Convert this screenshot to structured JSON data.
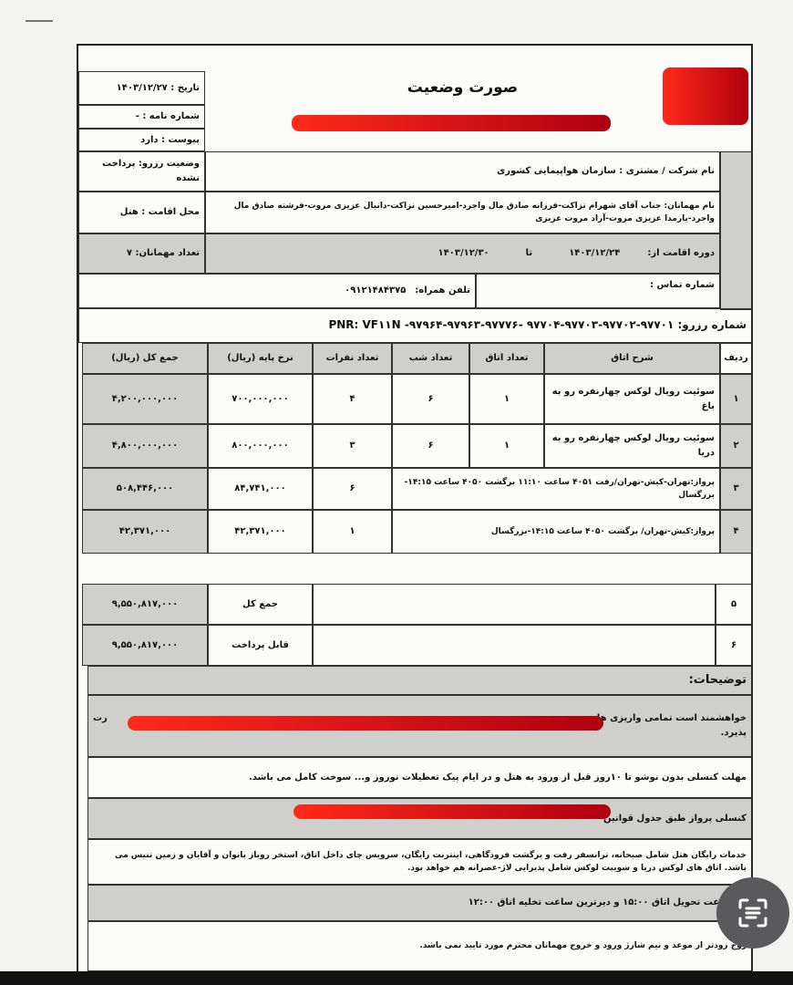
{
  "header": {
    "title": "صورت وضعیت",
    "date": "تاریخ : ۱۴۰۳/۱۲/۲۷",
    "letter_no": "شماره نامه : -",
    "attachment": "پیوست : دارد",
    "reservation_status": "وضعیت رزرو: پرداخت نشده",
    "residence": "محل اقامت : هتل",
    "guest_count": "تعداد مهمانان: ۷"
  },
  "info": {
    "company": "نام شرکت / مشتری : سازمان هواپیمایی کشوری",
    "guests": "نام مهمانان: جناب آقای شهرام نزاکت-فرزانه صادق مال واجرد-امیرحسین نزاکت-دانیال عزیزی مروت-فرشته صادق مال واجرد-یارمدا عزیزی مروت-آراد مروت عزیزی",
    "stay_from_label": "دوره اقامت از:",
    "stay_from": "۱۴۰۳/۱۲/۲۴",
    "stay_to_label": "تا",
    "stay_to": "۱۴۰۳/۱۲/۳۰",
    "contact_label": "شماره تماس :",
    "mobile_label": "تلفن همراه:",
    "mobile": "۰۹۱۲۱۴۸۴۳۷۵",
    "reservation_no": "شماره رزرو: ۹۷۷۰۱-۹۷۷۰۲-۹۷۷۰۳-۹۷۷۰۴ -۹۷۷۷۶-۹۷۹۶۳-۹۷۹۶۴- PNR: VF۱۱N"
  },
  "table": {
    "headers": [
      "ردیف",
      "شرح اتاق",
      "تعداد اتاق",
      "تعداد شب",
      "تعداد نفرات",
      "نرخ پایه (ریال)",
      "جمع کل (ریال)"
    ],
    "rows": [
      {
        "no": "۱",
        "desc": "سوئیت رویال لوکس چهارنفره رو به باغ",
        "rooms": "۱",
        "nights": "۶",
        "persons": "۴",
        "rate": "۷۰۰,۰۰۰,۰۰۰",
        "total": "۴,۲۰۰,۰۰۰,۰۰۰"
      },
      {
        "no": "۲",
        "desc": "سوئیت رویال لوکس چهارنفره رو به دریا",
        "rooms": "۱",
        "nights": "۶",
        "persons": "۳",
        "rate": "۸۰۰,۰۰۰,۰۰۰",
        "total": "۴,۸۰۰,۰۰۰,۰۰۰"
      },
      {
        "no": "۳",
        "desc": "پرواز:تهران-کیش-تهران/رفت ۴۰۵۱ ساعت ۱۱:۱۰ برگشت ۴۰۵۰ ساعت ۱۴:۱۵-بزرگسال",
        "persons": "۶",
        "rate": "۸۴,۷۴۱,۰۰۰",
        "total": "۵۰۸,۴۴۶,۰۰۰"
      },
      {
        "no": "۴",
        "desc": "پرواز:کیش-تهران/ برگشت ۴۰۵۰ ساعت ۱۴:۱۵-بزرگسال",
        "persons": "۱",
        "rate": "۴۲,۳۷۱,۰۰۰",
        "total": "۴۲,۳۷۱,۰۰۰"
      }
    ],
    "row5_no": "۵",
    "row6_no": "۶",
    "sum_label": "جمع کل",
    "sum": "۹,۵۵۰,۸۱۷,۰۰۰",
    "payable_label": "قابل پرداخت",
    "payable": "۹,۵۵۰,۸۱۷,۰۰۰"
  },
  "notes": {
    "title": "توضیحات:",
    "payment": "خواهشمند است تمامی واریزی ها به",
    "payment_end": "رت",
    "payment_line2": "پذیرد.",
    "cancellation": "مهلت کنسلی بدون نوشو تا ۱۰روز قبل از ورود به هتل و در ایام پیک تعطیلات نوروز و... سوخت کامل می باشد.",
    "flight_cancel": "کنسلی پرواز طبق جدول قوانین",
    "services": "خدمات رایگان هتل شامل صبحانه، ترانسفر رفت و برگشت فرودگاهی، اینترنت رایگان، سرویس چای داخل اتاق، استخر روباز بانوان و آقایان و زمین تنیس می باشد. اتاق های لوکس دریا و سوییت لوکس شامل پذیرایی لاژ-عصرانه هم خواهد بود.",
    "checkin": "ین ساعت تحویل اتاق ۱۵:۰۰ و دیرترین ساعت تخلیه اتاق ۱۲:۰۰",
    "early": "روج زودتر از موعد و نیم شارژ ورود و خروج مهمانان محترم مورد تایید نمی باشد."
  },
  "colors": {
    "redaction": "#e0101a",
    "shade": "#cfcfcd"
  }
}
